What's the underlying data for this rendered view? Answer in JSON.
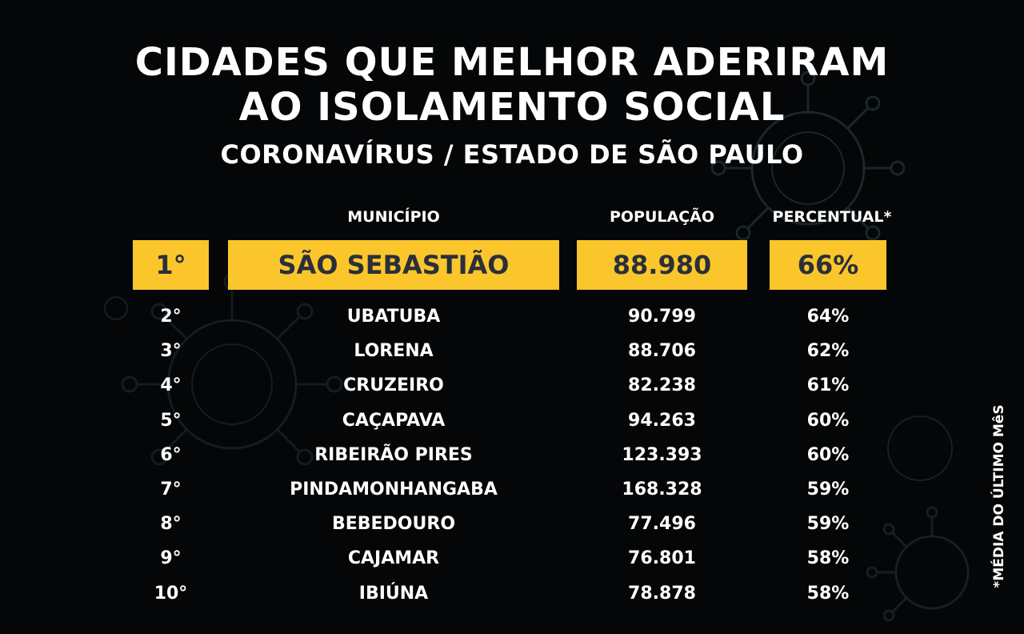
{
  "header": {
    "title_line1": "CIDADES QUE MELHOR ADERIRAM",
    "title_line2": "AO ISOLAMENTO SOCIAL",
    "subtitle": "CORONAVÍRUS / ESTADO DE SÃO PAULO"
  },
  "table": {
    "columns": {
      "municipio": "MUNICÍPIO",
      "populacao": "POPULAÇÃO",
      "percentual": "PERCENTUAL*"
    },
    "highlight": {
      "rank": "1°",
      "municipio": "SÃO SEBASTIÃO",
      "populacao": "88.980",
      "percentual": "66%"
    },
    "rows": [
      {
        "rank": "2°",
        "municipio": "UBATUBA",
        "populacao": "90.799",
        "percentual": "64%"
      },
      {
        "rank": "3°",
        "municipio": "LORENA",
        "populacao": "88.706",
        "percentual": "62%"
      },
      {
        "rank": "4°",
        "municipio": "CRUZEIRO",
        "populacao": "82.238",
        "percentual": "61%"
      },
      {
        "rank": "5°",
        "municipio": "CAÇAPAVA",
        "populacao": "94.263",
        "percentual": "60%"
      },
      {
        "rank": "6°",
        "municipio": "RIBEIRÃO PIRES",
        "populacao": "123.393",
        "percentual": "60%"
      },
      {
        "rank": "7°",
        "municipio": "PINDAMONHANGABA",
        "populacao": "168.328",
        "percentual": "59%"
      },
      {
        "rank": "8°",
        "municipio": "BEBEDOURO",
        "populacao": "77.496",
        "percentual": "59%"
      },
      {
        "rank": "9°",
        "municipio": "CAJAMAR",
        "populacao": "76.801",
        "percentual": "58%"
      },
      {
        "rank": "10°",
        "municipio": "IBIÚNA",
        "populacao": "78.878",
        "percentual": "58%"
      }
    ]
  },
  "footnote": "*MÉDIA DO ÚLTIMO MêS",
  "colors": {
    "background": "#050607",
    "highlight": "#fbc62b",
    "highlight_text": "#2a2f3a",
    "text": "#ffffff"
  }
}
